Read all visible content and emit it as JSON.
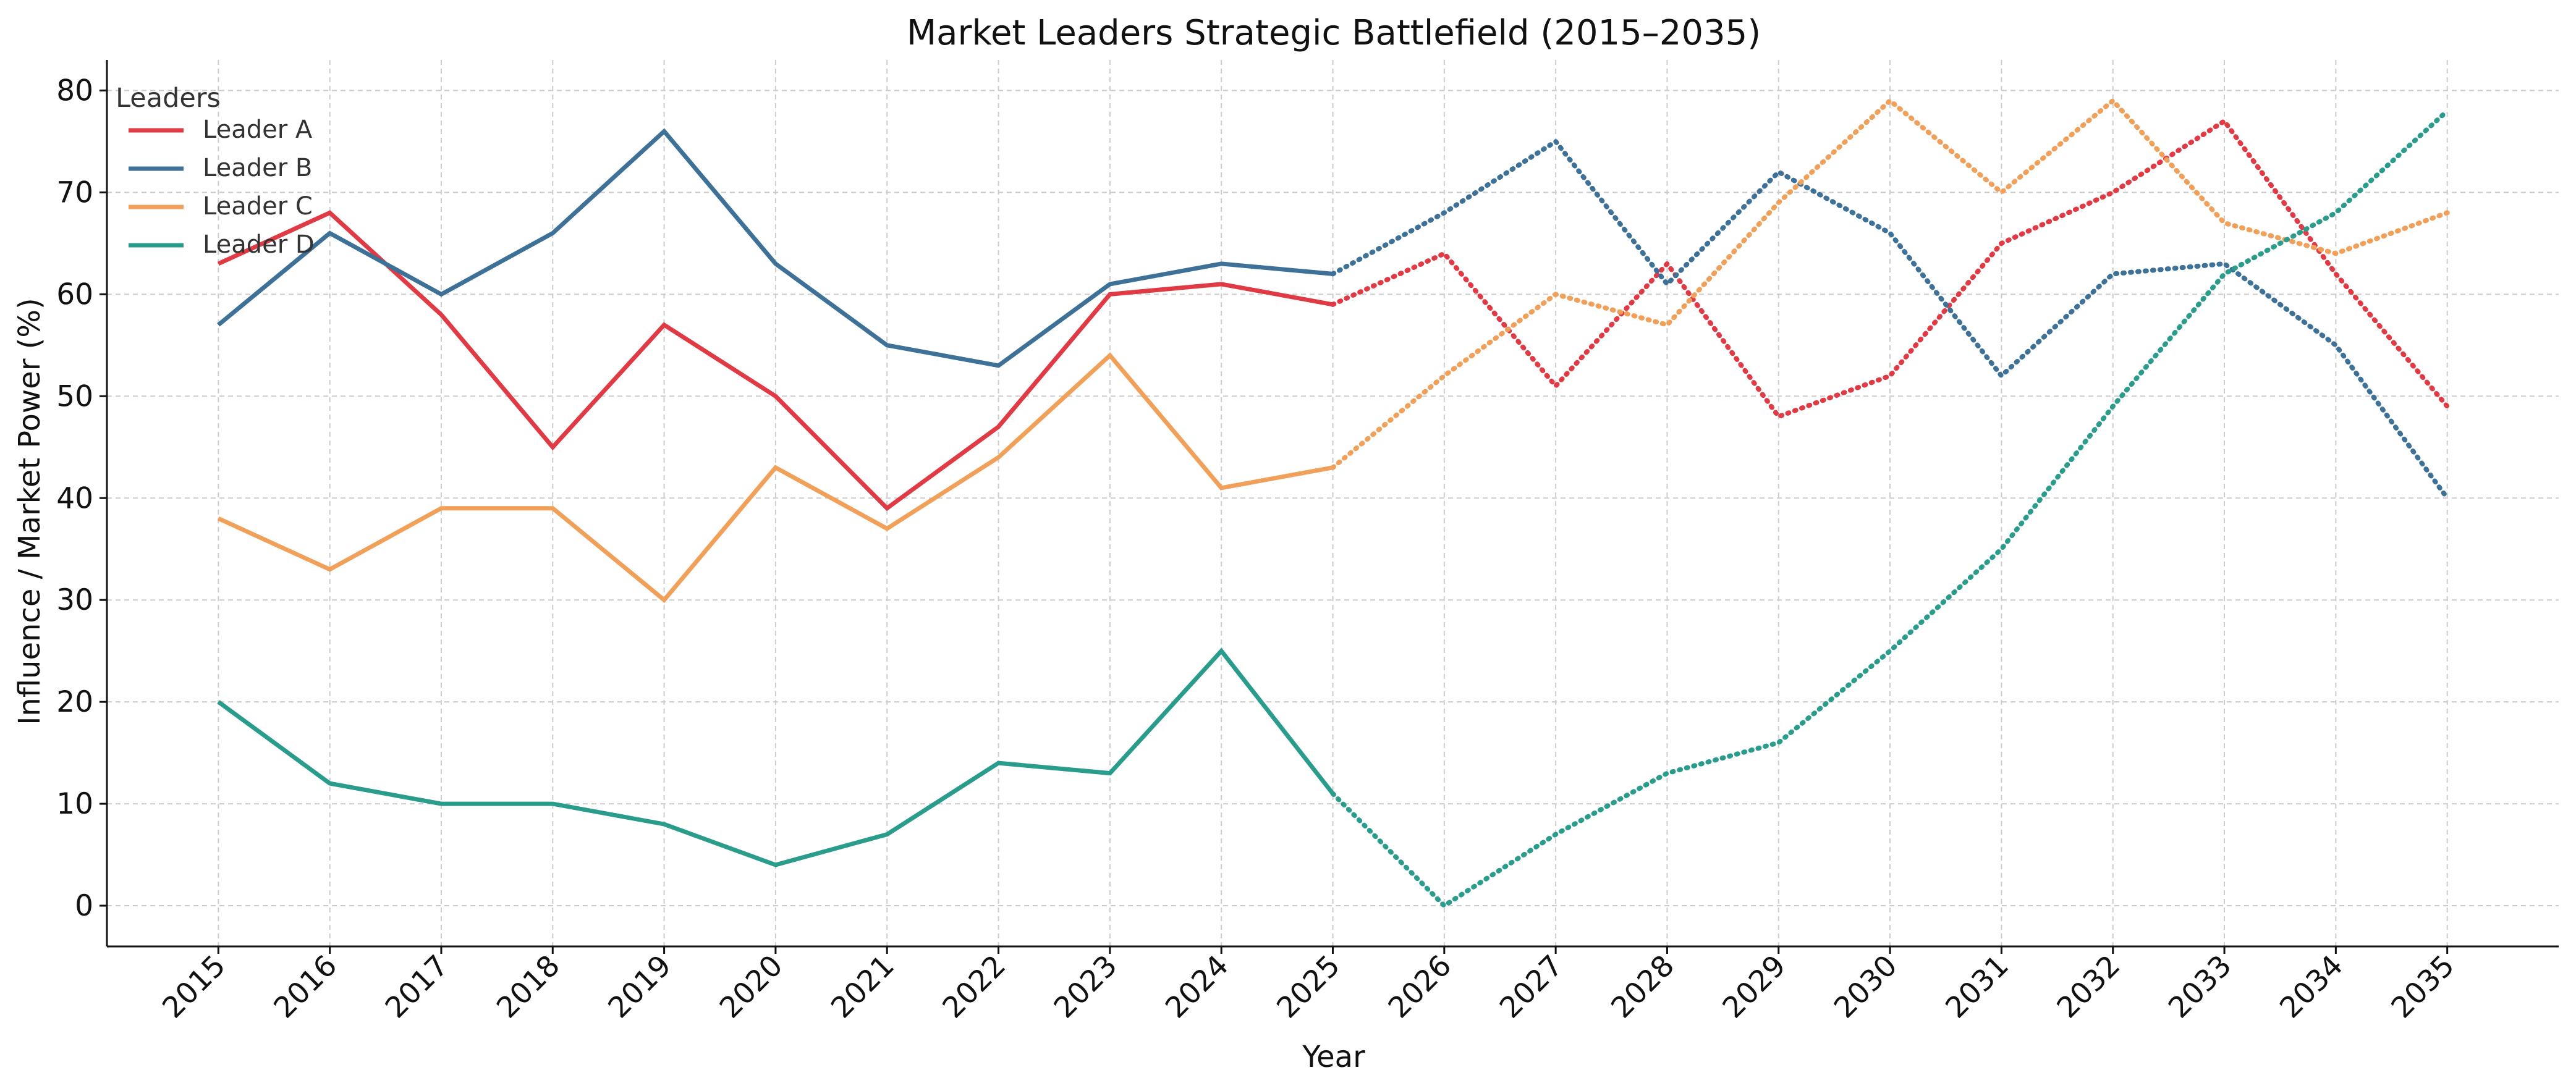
{
  "chart_data": {
    "type": "line",
    "title": "Market Leaders Strategic Battlefield (2015–2035)",
    "xlabel": "Year",
    "ylabel": "Influence / Market Power (%)",
    "x": [
      2015,
      2016,
      2017,
      2018,
      2019,
      2020,
      2021,
      2022,
      2023,
      2024,
      2025,
      2026,
      2027,
      2028,
      2029,
      2030,
      2031,
      2032,
      2033,
      2034,
      2035
    ],
    "xlim": [
      2014,
      2036
    ],
    "ylim": [
      -4,
      83
    ],
    "yticks": [
      0,
      10,
      20,
      30,
      40,
      50,
      60,
      70,
      80
    ],
    "grid": true,
    "legend": {
      "title": "Leaders",
      "placement": "top-left"
    },
    "historical_range": [
      2015,
      2025
    ],
    "projection_range": [
      2025,
      2035
    ],
    "historical_style": "solid",
    "projection_style": "dotted",
    "series": [
      {
        "name": "Leader A",
        "color": "#e03a45",
        "values": [
          63,
          68,
          58,
          45,
          57,
          50,
          39,
          47,
          60,
          61,
          59,
          64,
          51,
          63,
          48,
          52,
          65,
          70,
          77,
          62,
          49
        ]
      },
      {
        "name": "Leader B",
        "color": "#3e7197",
        "values": [
          57,
          66,
          60,
          66,
          76,
          63,
          55,
          53,
          61,
          63,
          62,
          68,
          75,
          61,
          72,
          66,
          52,
          62,
          63,
          55,
          40
        ]
      },
      {
        "name": "Leader C",
        "color": "#f1a05a",
        "values": [
          38,
          33,
          39,
          39,
          30,
          43,
          37,
          44,
          54,
          41,
          43,
          52,
          60,
          57,
          69,
          79,
          70,
          79,
          67,
          64,
          68
        ]
      },
      {
        "name": "Leader D",
        "color": "#2a9c8c",
        "values": [
          20,
          12,
          10,
          10,
          8,
          4,
          7,
          14,
          13,
          25,
          11,
          0,
          7,
          13,
          16,
          25,
          35,
          49,
          62,
          68,
          78
        ]
      }
    ]
  }
}
